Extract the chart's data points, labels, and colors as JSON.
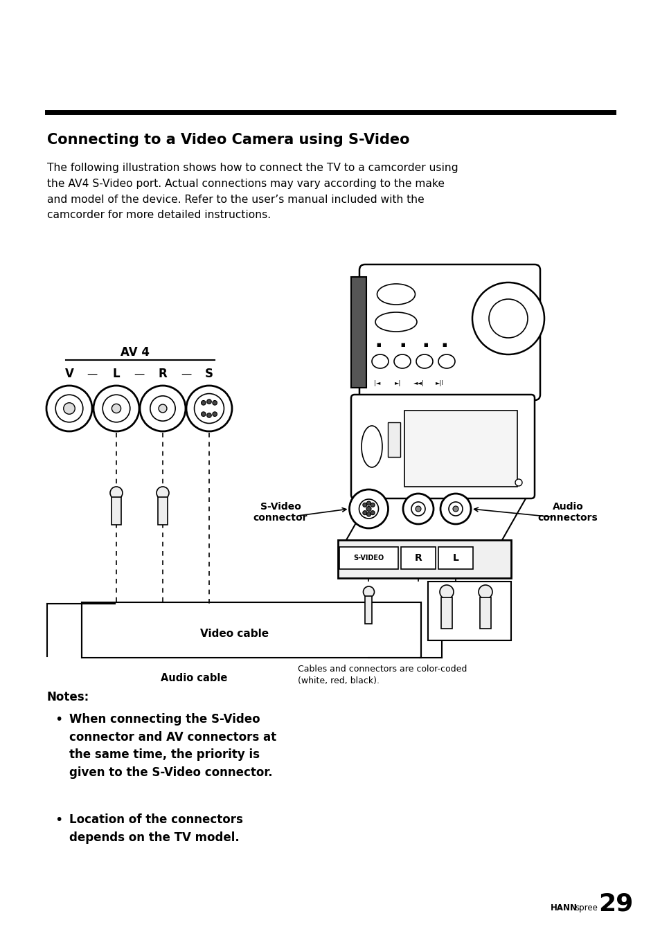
{
  "bg_color": "#ffffff",
  "title": "Connecting to a Video Camera using S-Video",
  "body_text": "The following illustration shows how to connect the TV to a camcorder using\nthe AV4 S-Video port. Actual connections may vary according to the make\nand model of the device. Refer to the user’s manual included with the\ncamcorder for more detailed instructions.",
  "brand_hann": "HANN",
  "brand_spree": "spree",
  "brand_num": "29",
  "notes_title": "Notes:",
  "bullet1": "When connecting the S-Video\nconnector and AV connectors at\nthe same time, the priority is\ngiven to the S-Video connector.",
  "bullet2": "Location of the connectors\ndepends on the TV model.",
  "label_av4": "AV 4",
  "label_v": "V",
  "label_l": "L",
  "label_r": "R",
  "label_s": "S",
  "label_svideo_conn": "S-Video\nconnector",
  "label_audio_conn": "Audio\nconnectors",
  "label_video_cable": "Video cable",
  "label_audio_cable": "Audio cable",
  "label_color_note": "Cables and connectors are color-coded\n(white, red, black).",
  "label_svideo_box": "S-VIDEO",
  "label_r_box": "R",
  "label_l_box": "L"
}
